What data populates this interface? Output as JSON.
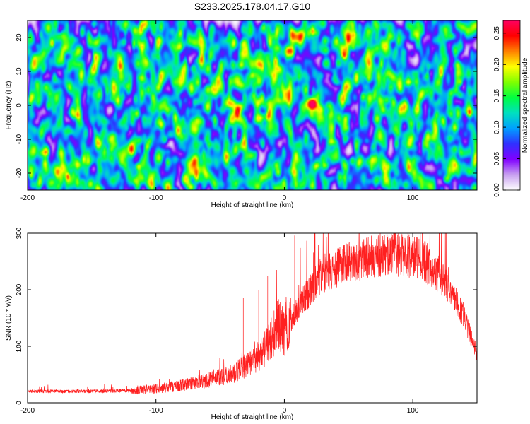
{
  "page_title": "S233.2025.178.04.17.G10",
  "chart_data": [
    {
      "type": "heatmap",
      "xlabel": "Height of straight line (km)",
      "ylabel": "Frequency (Hz)",
      "xlim": [
        -200,
        150
      ],
      "ylim": [
        -25,
        25
      ],
      "xticks": [
        "-200",
        "-100",
        "0",
        "100"
      ],
      "xtick_values": [
        -200,
        -100,
        0,
        100
      ],
      "yticks": [
        "20",
        "10",
        "0",
        "-10",
        "-20"
      ],
      "ytick_values": [
        20,
        10,
        0,
        -10,
        -20
      ],
      "colorbar": {
        "label": "Normalized spectral amplitude",
        "range": [
          0,
          0.27
        ],
        "ticks": [
          "0.00",
          "0.05",
          "0.10",
          "0.15",
          "0.20",
          "0.25"
        ],
        "tick_values": [
          0,
          0.05,
          0.1,
          0.15,
          0.2,
          0.25
        ],
        "colors": [
          "#ffffff",
          "#c8a0f0",
          "#8000ff",
          "#3030ff",
          "#00a0ff",
          "#00e0c0",
          "#00ff40",
          "#80ff00",
          "#ffff00",
          "#ff8000",
          "#ff0000",
          "#ff0060"
        ]
      },
      "peak": {
        "x": 22,
        "y": 0.5,
        "value": 0.27
      },
      "grid": false
    },
    {
      "type": "line",
      "xlabel": "Height of straight line (km)",
      "ylabel": "SNR (10 * v/v)",
      "xlim": [
        -200,
        150
      ],
      "ylim": [
        0,
        300
      ],
      "xticks": [
        "-200",
        "-100",
        "0",
        "100"
      ],
      "xtick_values": [
        -200,
        -100,
        0,
        100
      ],
      "yticks": [
        "300",
        "200",
        "100",
        "0"
      ],
      "ytick_values": [
        300,
        200,
        100,
        0
      ],
      "series_color": "#ff2020",
      "envelope_x": [
        -200,
        -150,
        -120,
        -100,
        -80,
        -60,
        -40,
        -25,
        -18,
        -10,
        -5,
        0,
        5,
        10,
        20,
        30,
        50,
        70,
        90,
        100,
        110,
        120,
        130,
        140,
        150
      ],
      "envelope_y": [
        20,
        20,
        21,
        24,
        30,
        38,
        50,
        70,
        85,
        110,
        140,
        120,
        135,
        165,
        195,
        225,
        245,
        255,
        258,
        255,
        245,
        225,
        190,
        150,
        85
      ],
      "spikes": [
        {
          "x": 8,
          "y": 296
        },
        {
          "x": 80,
          "y": 298
        },
        {
          "x": -13,
          "y": 225
        },
        {
          "x": -20,
          "y": 200
        },
        {
          "x": -32,
          "y": 185
        }
      ],
      "grid": false
    }
  ]
}
